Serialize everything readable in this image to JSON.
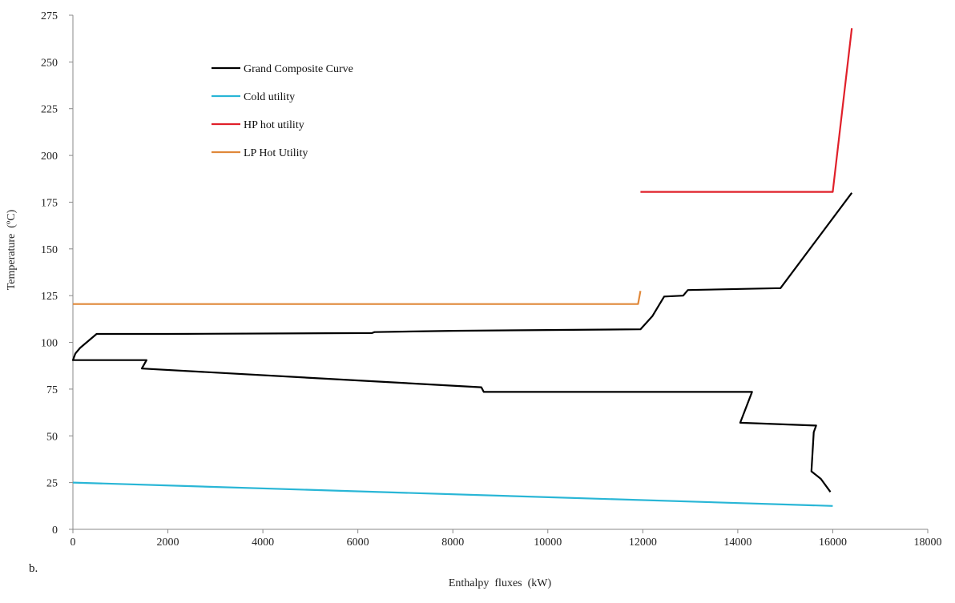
{
  "panel_label": "b.",
  "chart_data": {
    "type": "line",
    "xlabel": "Enthalpy  fluxes  (kW)",
    "ylabel": "Temperature  (ºC)",
    "xlim": [
      0,
      18000
    ],
    "ylim": [
      0,
      275
    ],
    "xticks": [
      0,
      2000,
      4000,
      6000,
      8000,
      10000,
      12000,
      14000,
      16000,
      18000
    ],
    "yticks": [
      0,
      25,
      50,
      75,
      100,
      125,
      150,
      175,
      200,
      225,
      250,
      275
    ],
    "grid": false,
    "legend_position": "top-left",
    "series": [
      {
        "name": "Grand Composite Curve",
        "color": "#000000",
        "points": [
          [
            16400,
            180
          ],
          [
            14900,
            129
          ],
          [
            12950,
            128
          ],
          [
            12850,
            125
          ],
          [
            12450,
            124.5
          ],
          [
            12200,
            114
          ],
          [
            11950,
            107
          ],
          [
            8000,
            106.2
          ],
          [
            6350,
            105.5
          ],
          [
            6300,
            105
          ],
          [
            2000,
            104.5
          ],
          [
            500,
            104.5
          ],
          [
            150,
            97
          ],
          [
            50,
            94
          ],
          [
            0,
            90.5
          ],
          [
            1550,
            90.5
          ],
          [
            1450,
            86
          ],
          [
            8600,
            76
          ],
          [
            8650,
            73.5
          ],
          [
            14300,
            73.5
          ],
          [
            14050,
            57
          ],
          [
            15650,
            55.5
          ],
          [
            15600,
            52
          ],
          [
            15550,
            31
          ],
          [
            15750,
            27
          ],
          [
            15950,
            20
          ]
        ]
      },
      {
        "name": "Cold utility",
        "color": "#29b6d6",
        "points": [
          [
            0,
            25
          ],
          [
            16000,
            12.5
          ]
        ]
      },
      {
        "name": "HP hot utility",
        "color": "#e0202a",
        "points": [
          [
            11950,
            180.5
          ],
          [
            16000,
            180.5
          ],
          [
            16400,
            268
          ]
        ]
      },
      {
        "name": "LP Hot Utility",
        "color": "#e0883a",
        "points": [
          [
            0,
            120.5
          ],
          [
            11900,
            120.5
          ],
          [
            11950,
            127.5
          ]
        ]
      }
    ]
  }
}
